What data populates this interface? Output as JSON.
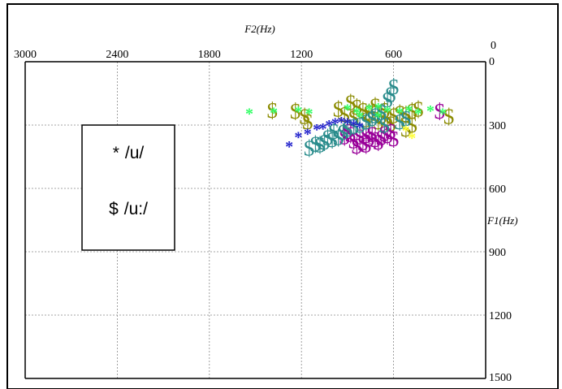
{
  "chart_data": {
    "type": "scatter",
    "xlabel": "F2(Hz)",
    "ylabel": "F1(Hz)",
    "x_reversed": true,
    "y_reversed": true,
    "xlim": [
      3000,
      0
    ],
    "ylim": [
      0,
      1500
    ],
    "x_ticks": [
      3000,
      2400,
      1800,
      1200,
      600,
      0
    ],
    "x_tick_labels": [
      "3000",
      "2400",
      "1800",
      "1200",
      "600",
      "0"
    ],
    "y_ticks": [
      0,
      300,
      600,
      900,
      1200,
      1500
    ],
    "y_tick_labels": [
      "0",
      "300",
      "600",
      "900",
      "1200",
      "1500"
    ],
    "grid": true,
    "legend_position": "left",
    "legend": [
      {
        "symbol": "*",
        "label": "/u/"
      },
      {
        "symbol": "$",
        "label": "/u:/"
      }
    ],
    "colors": {
      "olive": "#8b8b00",
      "purple": "#990099",
      "teal": "#2a8c8c",
      "green": "#33ff66",
      "blue": "#2222cc",
      "yellow": "#ffff33"
    },
    "series": [
      {
        "symbol": "$",
        "color": "olive",
        "points": [
          [
            1390,
            230
          ],
          [
            1240,
            235
          ],
          [
            1180,
            260
          ],
          [
            1160,
            285
          ],
          [
            960,
            225
          ],
          [
            880,
            195
          ],
          [
            840,
            215
          ],
          [
            800,
            230
          ],
          [
            760,
            240
          ],
          [
            720,
            245
          ],
          [
            680,
            260
          ],
          [
            640,
            270
          ],
          [
            600,
            255
          ],
          [
            560,
            245
          ],
          [
            520,
            250
          ],
          [
            480,
            235
          ],
          [
            440,
            225
          ],
          [
            920,
            250
          ],
          [
            860,
            265
          ],
          [
            780,
            275
          ],
          [
            700,
            285
          ],
          [
            620,
            295
          ],
          [
            520,
            320
          ],
          [
            480,
            300
          ],
          [
            240,
            260
          ],
          [
            720,
            210
          ],
          [
            660,
            230
          ]
        ]
      },
      {
        "symbol": "$",
        "color": "purple",
        "points": [
          [
            920,
            355
          ],
          [
            880,
            345
          ],
          [
            860,
            375
          ],
          [
            820,
            355
          ],
          [
            800,
            385
          ],
          [
            780,
            350
          ],
          [
            760,
            365
          ],
          [
            740,
            345
          ],
          [
            720,
            370
          ],
          [
            700,
            380
          ],
          [
            680,
            360
          ],
          [
            660,
            340
          ],
          [
            640,
            350
          ],
          [
            600,
            365
          ],
          [
            840,
            400
          ],
          [
            780,
            395
          ],
          [
            620,
            330
          ],
          [
            900,
            330
          ],
          [
            300,
            235
          ]
        ]
      },
      {
        "symbol": "$",
        "color": "teal",
        "points": [
          [
            1150,
            410
          ],
          [
            1110,
            390
          ],
          [
            1080,
            395
          ],
          [
            1050,
            380
          ],
          [
            1000,
            370
          ],
          [
            960,
            360
          ],
          [
            930,
            335
          ],
          [
            900,
            320
          ],
          [
            860,
            305
          ],
          [
            820,
            300
          ],
          [
            780,
            285
          ],
          [
            740,
            270
          ],
          [
            720,
            255
          ],
          [
            680,
            240
          ],
          [
            640,
            180
          ],
          [
            620,
            155
          ],
          [
            600,
            120
          ],
          [
            660,
            300
          ],
          [
            560,
            285
          ],
          [
            520,
            270
          ],
          [
            1030,
            360
          ],
          [
            990,
            330
          ]
        ]
      },
      {
        "symbol": "*",
        "color": "green",
        "points": [
          [
            1540,
            245
          ],
          [
            1380,
            240
          ],
          [
            1220,
            235
          ],
          [
            1150,
            245
          ],
          [
            900,
            225
          ],
          [
            840,
            240
          ],
          [
            760,
            225
          ],
          [
            700,
            220
          ],
          [
            640,
            235
          ],
          [
            560,
            240
          ],
          [
            500,
            230
          ],
          [
            440,
            245
          ],
          [
            360,
            230
          ],
          [
            280,
            245
          ],
          [
            820,
            260
          ],
          [
            700,
            260
          ]
        ]
      },
      {
        "symbol": "*",
        "color": "blue",
        "points": [
          [
            1280,
            400
          ],
          [
            1220,
            355
          ],
          [
            1160,
            340
          ],
          [
            1100,
            320
          ],
          [
            1060,
            315
          ],
          [
            1020,
            300
          ],
          [
            980,
            290
          ],
          [
            940,
            285
          ],
          [
            900,
            290
          ],
          [
            860,
            300
          ],
          [
            820,
            310
          ]
        ]
      },
      {
        "symbol": "*",
        "color": "yellow",
        "points": [
          [
            520,
            325
          ],
          [
            480,
            360
          ]
        ]
      }
    ]
  }
}
